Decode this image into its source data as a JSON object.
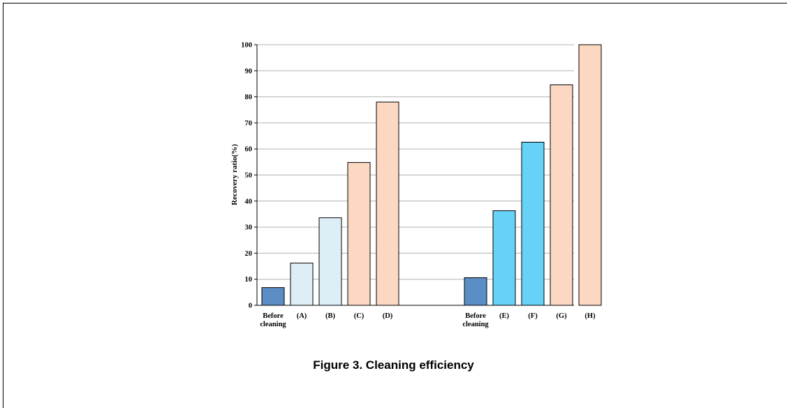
{
  "chart_data": {
    "type": "bar",
    "ylabel": "Recovery ratio(%)",
    "ylim": [
      0,
      100
    ],
    "yticks": [
      0,
      10,
      20,
      30,
      40,
      50,
      60,
      70,
      80,
      90,
      100
    ],
    "grid": true,
    "categories": [
      "Before cleaning",
      "(A)",
      "(B)",
      "(C)",
      "(D)",
      "Before cleaning",
      "(E)",
      "(F)",
      "(G)",
      "(H)"
    ],
    "values": [
      6.8,
      16.2,
      33.6,
      54.8,
      78,
      10.6,
      36.3,
      62.6,
      84.6,
      100
    ],
    "colors": [
      "#5b8ec4",
      "#deeef7",
      "#deeef7",
      "#fcd7c2",
      "#fcd7c2",
      "#5b8ec4",
      "#66d2f7",
      "#66d2f7",
      "#fcd7c2",
      "#fcd7c2"
    ]
  },
  "caption": "Figure 3. Cleaning efficiency"
}
